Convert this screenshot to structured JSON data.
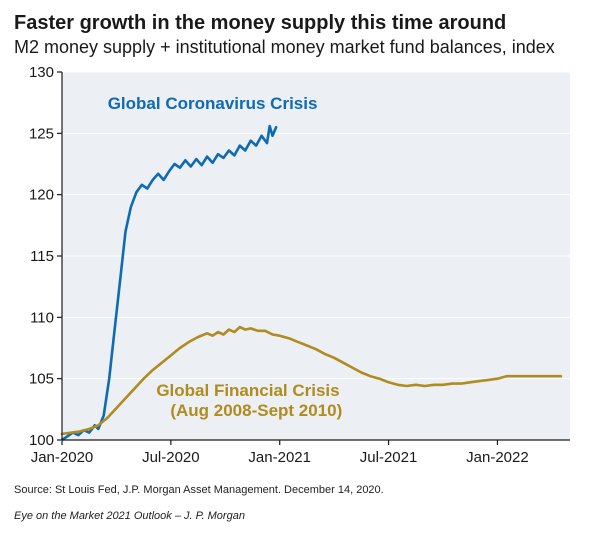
{
  "title": "Faster growth in the money supply this time around",
  "subtitle": "M2 money supply + institutional money market fund balances, index",
  "chart": {
    "type": "line",
    "background_color": "#eceff3",
    "page_background": "#ffffff",
    "axis_font_color": "#1a1a1a",
    "axis_fontsize": 15,
    "axis_line_color": "#1a1a1a",
    "axis_line_width": 1.2,
    "grid_color": "#ffffff",
    "grid_width": 1.0,
    "ylim": [
      100,
      130
    ],
    "yticks": [
      100,
      105,
      110,
      115,
      120,
      125,
      130
    ],
    "x_domain_months": 28,
    "xticks": [
      {
        "month": 0,
        "label": "Jan-2020"
      },
      {
        "month": 6,
        "label": "Jul-2020"
      },
      {
        "month": 12,
        "label": "Jan-2021"
      },
      {
        "month": 18,
        "label": "Jul-2021"
      },
      {
        "month": 24,
        "label": "Jan-2022"
      }
    ],
    "series": [
      {
        "id": "covid",
        "label": "Global Coronavirus Crisis",
        "color": "#0f6ab4",
        "line_width": 2.6,
        "label_pos": {
          "x_month": 8.3,
          "y_val": 127.0
        },
        "label_fontsize": 17,
        "label_fontweight": "700",
        "points": [
          [
            0,
            100.0
          ],
          [
            0.3,
            100.3
          ],
          [
            0.6,
            100.6
          ],
          [
            0.9,
            100.4
          ],
          [
            1.2,
            100.8
          ],
          [
            1.5,
            100.6
          ],
          [
            1.8,
            101.2
          ],
          [
            2.0,
            100.9
          ],
          [
            2.3,
            102.0
          ],
          [
            2.6,
            105.0
          ],
          [
            2.9,
            109.0
          ],
          [
            3.2,
            113.0
          ],
          [
            3.5,
            117.0
          ],
          [
            3.8,
            119.0
          ],
          [
            4.1,
            120.2
          ],
          [
            4.4,
            120.8
          ],
          [
            4.7,
            120.5
          ],
          [
            5.0,
            121.2
          ],
          [
            5.3,
            121.7
          ],
          [
            5.6,
            121.2
          ],
          [
            5.9,
            121.9
          ],
          [
            6.2,
            122.5
          ],
          [
            6.5,
            122.2
          ],
          [
            6.8,
            122.8
          ],
          [
            7.1,
            122.3
          ],
          [
            7.4,
            122.9
          ],
          [
            7.7,
            122.4
          ],
          [
            8.0,
            123.1
          ],
          [
            8.3,
            122.6
          ],
          [
            8.6,
            123.3
          ],
          [
            8.9,
            123.0
          ],
          [
            9.2,
            123.6
          ],
          [
            9.5,
            123.2
          ],
          [
            9.8,
            124.0
          ],
          [
            10.1,
            123.6
          ],
          [
            10.4,
            124.4
          ],
          [
            10.7,
            124.0
          ],
          [
            11.0,
            124.8
          ],
          [
            11.3,
            124.2
          ],
          [
            11.45,
            125.6
          ],
          [
            11.6,
            124.8
          ],
          [
            11.8,
            125.5
          ]
        ]
      },
      {
        "id": "gfc",
        "label1": "Global Financial Crisis",
        "label2": "(Aug 2008-Sept 2010)",
        "color": "#b08b1e",
        "line_width": 2.6,
        "label_pos": {
          "x_month": 5.2,
          "y_val": 103.6
        },
        "label_fontsize": 17,
        "label_fontweight": "700",
        "points": [
          [
            0,
            100.5
          ],
          [
            0.5,
            100.6
          ],
          [
            1.0,
            100.7
          ],
          [
            1.5,
            100.9
          ],
          [
            2.0,
            101.2
          ],
          [
            2.5,
            101.8
          ],
          [
            3.0,
            102.6
          ],
          [
            3.5,
            103.4
          ],
          [
            4.0,
            104.2
          ],
          [
            4.5,
            105.0
          ],
          [
            5.0,
            105.7
          ],
          [
            5.5,
            106.3
          ],
          [
            6.0,
            106.9
          ],
          [
            6.5,
            107.5
          ],
          [
            7.0,
            108.0
          ],
          [
            7.5,
            108.4
          ],
          [
            8.0,
            108.7
          ],
          [
            8.3,
            108.5
          ],
          [
            8.6,
            108.8
          ],
          [
            8.9,
            108.6
          ],
          [
            9.2,
            109.0
          ],
          [
            9.5,
            108.8
          ],
          [
            9.8,
            109.2
          ],
          [
            10.1,
            109.0
          ],
          [
            10.4,
            109.1
          ],
          [
            10.8,
            108.9
          ],
          [
            11.2,
            108.9
          ],
          [
            11.6,
            108.6
          ],
          [
            12.0,
            108.5
          ],
          [
            12.5,
            108.3
          ],
          [
            13.0,
            108.0
          ],
          [
            13.5,
            107.7
          ],
          [
            14.0,
            107.4
          ],
          [
            14.5,
            107.0
          ],
          [
            15.0,
            106.7
          ],
          [
            15.5,
            106.3
          ],
          [
            16.0,
            105.9
          ],
          [
            16.5,
            105.5
          ],
          [
            17.0,
            105.2
          ],
          [
            17.5,
            105.0
          ],
          [
            18.0,
            104.7
          ],
          [
            18.5,
            104.5
          ],
          [
            19.0,
            104.4
          ],
          [
            19.5,
            104.5
          ],
          [
            20.0,
            104.4
          ],
          [
            20.5,
            104.5
          ],
          [
            21.0,
            104.5
          ],
          [
            21.5,
            104.6
          ],
          [
            22.0,
            104.6
          ],
          [
            22.5,
            104.7
          ],
          [
            23.0,
            104.8
          ],
          [
            23.5,
            104.9
          ],
          [
            24.0,
            105.0
          ],
          [
            24.5,
            105.2
          ],
          [
            25.0,
            105.2
          ],
          [
            25.5,
            105.2
          ],
          [
            26.0,
            105.2
          ],
          [
            26.5,
            105.2
          ],
          [
            27.0,
            105.2
          ],
          [
            27.5,
            105.2
          ]
        ]
      }
    ]
  },
  "source_line": "Source: St Louis Fed, J.P. Morgan Asset Management. December 14, 2020.",
  "footer_line": "Eye on the Market 2021 Outlook – J. P. Morgan"
}
